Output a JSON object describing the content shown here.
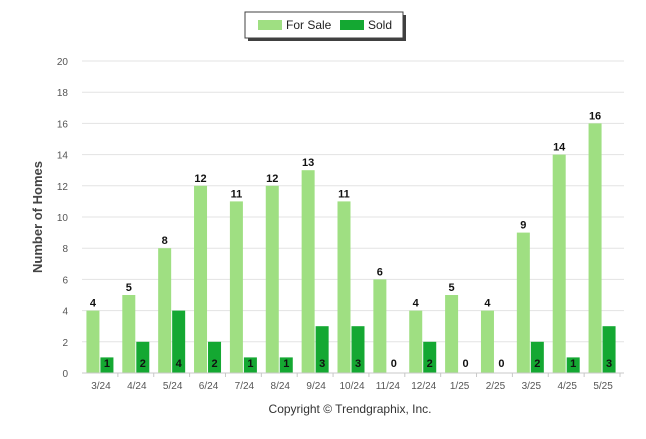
{
  "chart_data": {
    "type": "bar",
    "categories": [
      "3/24",
      "4/24",
      "5/24",
      "6/24",
      "7/24",
      "8/24",
      "9/24",
      "10/24",
      "11/24",
      "12/24",
      "1/25",
      "2/25",
      "3/25",
      "4/25",
      "5/25"
    ],
    "series": [
      {
        "name": "For Sale",
        "values": [
          4,
          5,
          8,
          12,
          11,
          12,
          13,
          11,
          6,
          4,
          5,
          4,
          9,
          14,
          16
        ],
        "color": "#9fdf82"
      },
      {
        "name": "Sold",
        "values": [
          1,
          2,
          4,
          2,
          1,
          1,
          3,
          3,
          0,
          2,
          0,
          0,
          2,
          1,
          3
        ],
        "color": "#14a832"
      }
    ],
    "ylabel": "Number of Homes",
    "ylim": [
      0,
      20
    ],
    "yticks": [
      0,
      2,
      4,
      6,
      8,
      10,
      12,
      14,
      16,
      18,
      20
    ],
    "grid": true,
    "legend_position": "top-center"
  },
  "footer": {
    "copyright": "Copyright © Trendgraphix, Inc."
  }
}
